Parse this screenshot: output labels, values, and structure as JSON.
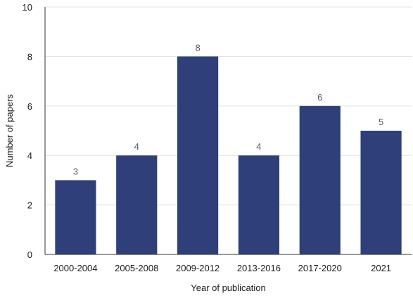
{
  "chart_data": {
    "type": "bar",
    "categories": [
      "2000-2004",
      "2005-2008",
      "2009-2012",
      "2013-2016",
      "2017-2020",
      "2021"
    ],
    "values": [
      3,
      4,
      8,
      4,
      6,
      5
    ],
    "data_labels": [
      "3",
      "4",
      "8",
      "4",
      "6",
      "5"
    ],
    "title": "",
    "xlabel": "Year of publication",
    "ylabel": "Number of papers",
    "ylim": [
      0,
      10
    ],
    "yticks": [
      0,
      2,
      4,
      6,
      8,
      10
    ],
    "ytick_labels": [
      "0",
      "2",
      "4",
      "6",
      "8",
      "10"
    ],
    "grid": "horizontal",
    "legend": "none",
    "colors": {
      "bar": "#2e3f7a",
      "grid": "#e0e0e0",
      "axis": "#333333"
    }
  }
}
